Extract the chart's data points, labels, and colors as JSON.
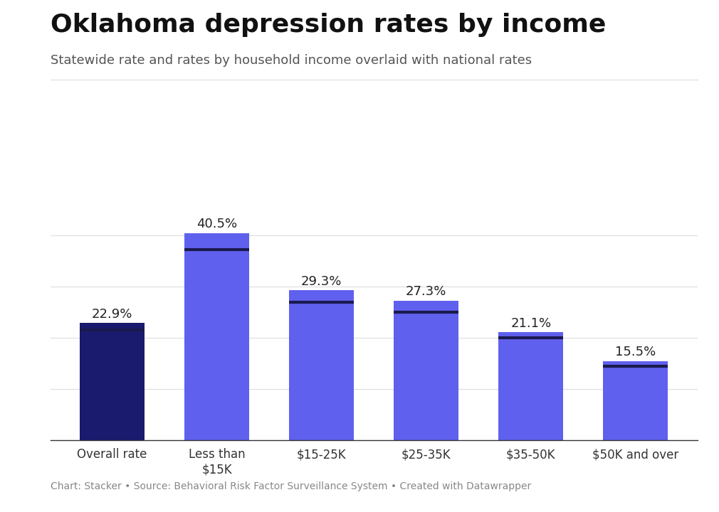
{
  "title": "Oklahoma depression rates by income",
  "subtitle": "Statewide rate and rates by household income overlaid with national rates",
  "footer": "Chart: Stacker • Source: Behavioral Risk Factor Surveillance System • Created with Datawrapper",
  "categories": [
    "Overall rate",
    "Less than\n$15K",
    "$15-25K",
    "$25-35K",
    "$35-50K",
    "$50K and over"
  ],
  "values": [
    22.9,
    40.5,
    29.3,
    27.3,
    21.1,
    15.5
  ],
  "bar_colors": [
    "#1a1a6e",
    "#6060ee",
    "#6060ee",
    "#6060ee",
    "#6060ee",
    "#6060ee"
  ],
  "national_lines": [
    21.5,
    37.2,
    27.0,
    25.0,
    20.0,
    14.5
  ],
  "ylim": [
    0,
    46
  ],
  "bar_width": 0.62,
  "background_color": "#ffffff",
  "title_fontsize": 26,
  "subtitle_fontsize": 13,
  "label_fontsize": 13,
  "tick_fontsize": 12,
  "footer_fontsize": 10,
  "line_color": "#1a1a4e",
  "line_width": 3.0,
  "grid_color": "#dddddd",
  "grid_levels": [
    10,
    20,
    30,
    40
  ]
}
